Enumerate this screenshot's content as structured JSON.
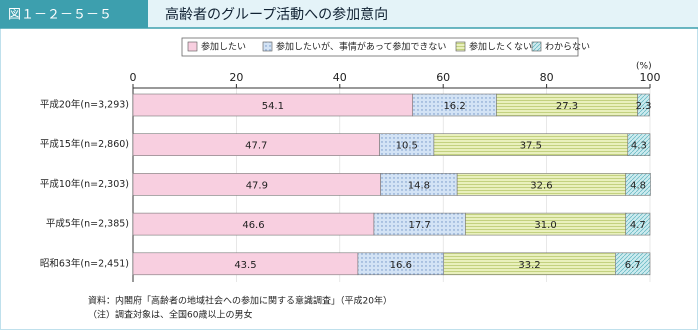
{
  "chart_data": {
    "type": "stacked-bar-horizontal",
    "figure_number": "図１－２－５－５",
    "title": "高齢者のグループ活動への参加意向",
    "categories": [
      "平成20年(n=3,293)",
      "平成15年(n=2,860)",
      "平成10年(n=2,303)",
      "平成5年(n=2,385)",
      "昭和63年(n=2,451)"
    ],
    "series": [
      {
        "name": "参加したい",
        "color": "#f8cfe0",
        "pattern": "none",
        "values": [
          54.1,
          47.7,
          47.9,
          46.6,
          43.5
        ]
      },
      {
        "name": "参加したいが、事情があって参加できない",
        "color": "#d3e3f5",
        "pattern": "dots",
        "values": [
          16.2,
          10.5,
          14.8,
          17.7,
          16.6
        ]
      },
      {
        "name": "参加したくない",
        "color": "#e9f0bd",
        "pattern": "hlines",
        "values": [
          27.3,
          37.5,
          32.6,
          31,
          33.2
        ],
        "value_labels": [
          "27.3",
          "37.5",
          "32.6",
          "31.0",
          "33.2"
        ]
      },
      {
        "name": "わからない",
        "color": "#cdebef",
        "pattern": "diagonal",
        "values": [
          2.3,
          4.3,
          4.8,
          4.7,
          6.7
        ]
      }
    ],
    "xlabel": "(%)",
    "xlim": [
      0,
      100
    ],
    "xticks": [
      0,
      20,
      40,
      60,
      80,
      100
    ],
    "grid": true,
    "notes": [
      "資料：内閣府「高齢者の地域社会への参加に関する意識調査」（平成20年）",
      "（注）調査対象は、全国60歳以上の男女"
    ]
  }
}
